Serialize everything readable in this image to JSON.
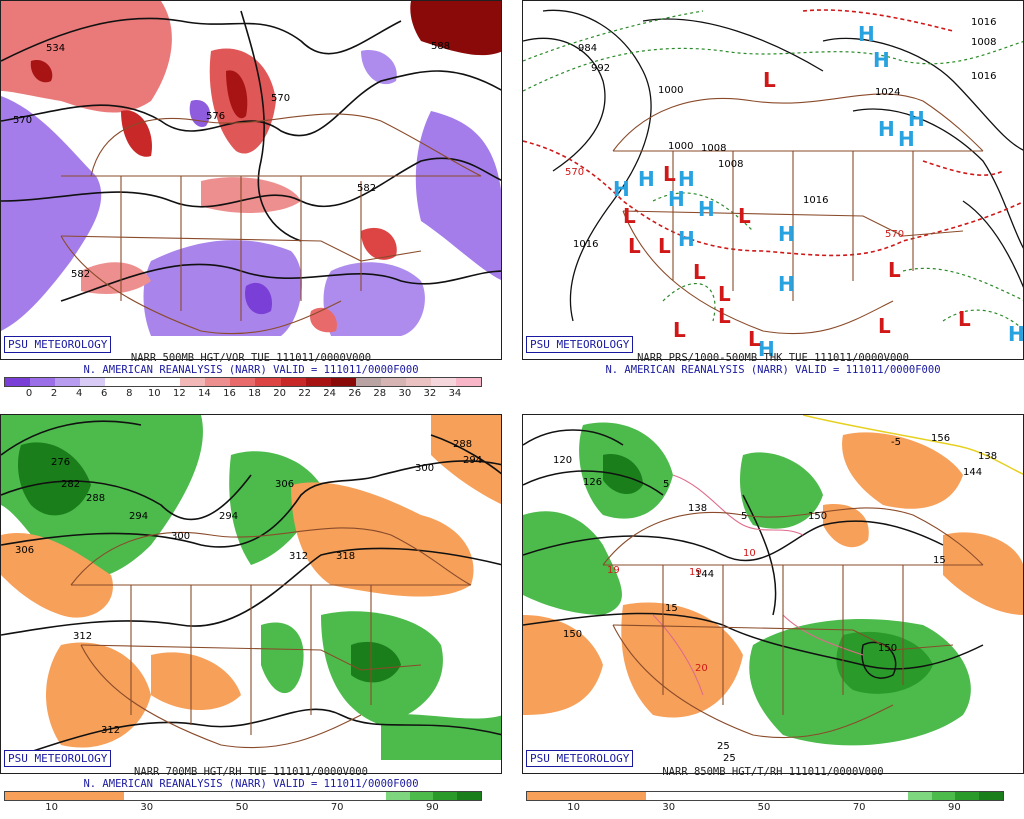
{
  "brand": "PSU METEOROLOGY",
  "panels": [
    {
      "title1": "NARR 500MB HGT/VOR TUE 111011/0000V000",
      "title2": "N. AMERICAN REANALYSIS (NARR) VALID = 111011/0000F000",
      "colorbar_colors": [
        "#7a3fd6",
        "#9a6fe8",
        "#b79cf0",
        "#d8ccf7",
        "#ffffff",
        "#ffffff",
        "#ffffff",
        "#f2b7b7",
        "#ee8f8f",
        "#e86a6a",
        "#dd4545",
        "#c82828",
        "#a81414",
        "#8a0a0a",
        "#b9a3a3",
        "#d7b4b4",
        "#eac2c2",
        "#f5d6dc",
        "#f8b6c8"
      ],
      "ticks": [
        "0",
        "2",
        "4",
        "6",
        "8",
        "10",
        "12",
        "14",
        "16",
        "18",
        "20",
        "22",
        "24",
        "26",
        "28",
        "30",
        "32",
        "34"
      ],
      "map_labels": [
        "534",
        "570",
        "582",
        "570",
        "582",
        "576",
        "588"
      ]
    },
    {
      "title1": "NARR PRS/1000-500MB THK TUE 111011/0000V000",
      "title2": "N. AMERICAN REANALYSIS (NARR) VALID = 111011/0000F000",
      "colorbar_colors": [],
      "ticks": [],
      "map_labels": [
        "984",
        "992",
        "1000",
        "1008",
        "1008",
        "1000",
        "1016",
        "1016",
        "1024",
        "1016",
        "1008",
        "570",
        "570",
        "1016"
      ]
    },
    {
      "title1": "NARR 700MB HGT/RH TUE 111011/0000V000",
      "title2": "N. AMERICAN REANALYSIS (NARR) VALID = 111011/0000F000",
      "colorbar_colors": [
        "#f6a05a",
        "#f6a05a",
        "#f6a05a",
        "#f6a05a",
        "#f6a05a",
        "#ffffff",
        "#ffffff",
        "#ffffff",
        "#ffffff",
        "#ffffff",
        "#ffffff",
        "#ffffff",
        "#ffffff",
        "#ffffff",
        "#ffffff",
        "#ffffff",
        "#7ed67e",
        "#4cbb4c",
        "#2a9a2a",
        "#1a7f1a"
      ],
      "ticks": [
        "10",
        "30",
        "50",
        "70",
        "90"
      ],
      "map_labels": [
        "276",
        "282",
        "288",
        "294",
        "300",
        "306",
        "306",
        "294",
        "312",
        "318",
        "312",
        "312",
        "288",
        "294",
        "300"
      ]
    },
    {
      "title1": "NARR 850MB HGT/T/RH 111011/0000V000",
      "title2": "",
      "colorbar_colors": [
        "#f6a05a",
        "#f6a05a",
        "#f6a05a",
        "#f6a05a",
        "#f6a05a",
        "#ffffff",
        "#ffffff",
        "#ffffff",
        "#ffffff",
        "#ffffff",
        "#ffffff",
        "#ffffff",
        "#ffffff",
        "#ffffff",
        "#ffffff",
        "#ffffff",
        "#7ed67e",
        "#4cbb4c",
        "#2a9a2a",
        "#1a7f1a"
      ],
      "ticks": [
        "10",
        "30",
        "50",
        "70",
        "90"
      ],
      "map_labels": [
        "120",
        "126",
        "138",
        "144",
        "150",
        "150",
        "150",
        "156",
        "138",
        "144",
        "5",
        "5",
        "15",
        "15",
        "10",
        "19",
        "19",
        "20",
        "25",
        "25",
        "-5"
      ]
    }
  ]
}
